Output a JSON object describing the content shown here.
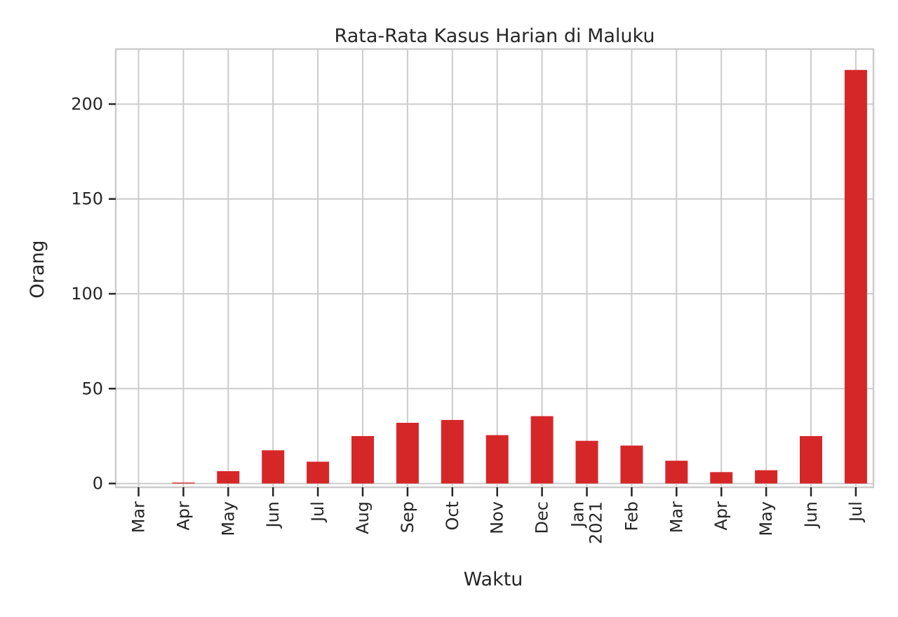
{
  "chart_data": {
    "type": "bar",
    "title": "Rata-Rata Kasus Harian di Maluku",
    "xlabel": "Waktu",
    "ylabel": "Orang",
    "categories": [
      "Mar",
      "Apr",
      "May",
      "Jun",
      "Jul",
      "Aug",
      "Sep",
      "Oct",
      "Nov",
      "Dec",
      "Jan\n2021",
      "Feb",
      "Mar",
      "Apr",
      "May",
      "Jun",
      "Jul"
    ],
    "values": [
      0,
      0.5,
      6.5,
      17.5,
      11.5,
      25,
      32,
      33.5,
      25.5,
      35.5,
      22.5,
      20,
      12,
      6,
      7,
      25,
      218
    ],
    "ylim": [
      -2,
      229
    ],
    "yticks": [
      0,
      50,
      100,
      150,
      200
    ],
    "grid": true,
    "bar_color": "#d62728"
  }
}
